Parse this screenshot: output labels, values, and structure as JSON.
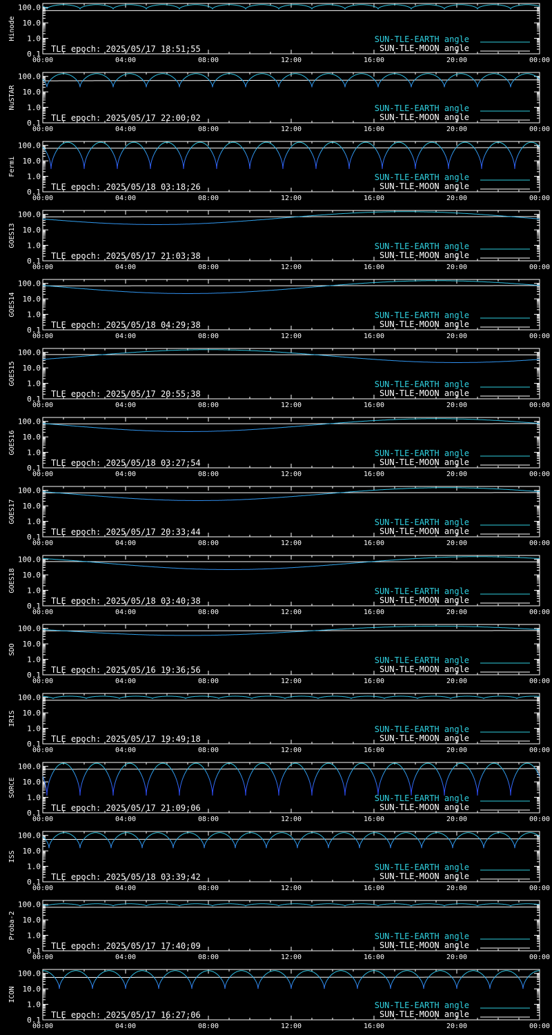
{
  "colors": {
    "background": "#000000",
    "axes": "#ffffff",
    "sun_earth_dip": "#3050ff",
    "sun_earth_high": "#30d0e0",
    "sun_moon": "#ffffff"
  },
  "chart_data": {
    "type": "line",
    "y_scale": "log",
    "ylim": [
      0.1,
      180.0
    ],
    "xlim": [
      "00:00",
      "24:00"
    ],
    "x_tick_labels": [
      "00:00",
      "04:00",
      "08:00",
      "12:00",
      "16:00",
      "20:00",
      "00:00"
    ],
    "y_tick_labels": [
      "100.0",
      "10.0",
      "1.0",
      "0.1"
    ],
    "legend_position": "bottom-right",
    "legend": {
      "earth": "SUN-TLE-EARTH angle",
      "moon": "SUN-TLE-MOON angle"
    },
    "panels": [
      {
        "satellite": "Hinode",
        "epoch": "TLE epoch: 2025/05/17 18:51:55",
        "earth": {
          "kind": "orbital",
          "period_h": 1.6,
          "phase_h": 0.2,
          "max": 150,
          "min": 80
        },
        "moon": {
          "start": 62,
          "end": 62
        }
      },
      {
        "satellite": "NuSTAR",
        "epoch": "TLE epoch: 2025/05/17 22:00:02",
        "earth": {
          "kind": "orbital",
          "period_h": 1.6,
          "phase_h": 0.2,
          "max": 150,
          "min": 20
        },
        "moon": {
          "start": 52,
          "end": 60
        }
      },
      {
        "satellite": "Fermi",
        "epoch": "TLE epoch: 2025/05/18 03:18:26",
        "earth": {
          "kind": "orbital",
          "period_h": 1.6,
          "phase_h": 0.4,
          "max": 160,
          "min": 3
        },
        "moon": {
          "start": 65,
          "end": 72
        }
      },
      {
        "satellite": "GOES13",
        "epoch": "TLE epoch: 2025/05/17 21:03:38",
        "earth": {
          "kind": "daily",
          "low_h": 5.5,
          "min": 22,
          "max": 150
        },
        "moon": {
          "start": 70,
          "end": 72
        }
      },
      {
        "satellite": "GOES14",
        "epoch": "TLE epoch: 2025/05/18 04:29:38",
        "earth": {
          "kind": "daily",
          "low_h": 7.0,
          "min": 22,
          "max": 150
        },
        "moon": {
          "start": 70,
          "end": 72
        }
      },
      {
        "satellite": "GOES15",
        "epoch": "TLE epoch: 2025/05/17 20:55:38",
        "earth": {
          "kind": "daily",
          "low_h": 20.0,
          "min": 22,
          "max": 150
        },
        "moon": {
          "start": 72,
          "end": 70
        }
      },
      {
        "satellite": "GOES16",
        "epoch": "TLE epoch: 2025/05/18 03:27:54",
        "earth": {
          "kind": "daily",
          "low_h": 7.0,
          "min": 22,
          "max": 150
        },
        "moon": {
          "start": 70,
          "end": 72
        }
      },
      {
        "satellite": "GOES17",
        "epoch": "TLE epoch: 2025/05/17 20:33:44",
        "earth": {
          "kind": "daily",
          "low_h": 7.5,
          "min": 22,
          "max": 150
        },
        "moon": {
          "start": 70,
          "end": 72
        }
      },
      {
        "satellite": "GOES18",
        "epoch": "TLE epoch: 2025/05/18 03:40:38",
        "earth": {
          "kind": "daily",
          "low_h": 9.0,
          "min": 22,
          "max": 150
        },
        "moon": {
          "start": 72,
          "end": 70
        }
      },
      {
        "satellite": "SDO",
        "epoch": "TLE epoch: 2025/05/16 19:36:56",
        "earth": {
          "kind": "daily",
          "low_h": 7.0,
          "min": 35,
          "max": 140
        },
        "moon": {
          "start": 70,
          "end": 72
        }
      },
      {
        "satellite": "IRIS",
        "epoch": "TLE epoch: 2025/05/17 19:49:18",
        "earth": {
          "kind": "orbital",
          "period_h": 1.6,
          "phase_h": 0.5,
          "max": 120,
          "min": 85
        },
        "moon": {
          "start": 65,
          "end": 65
        }
      },
      {
        "satellite": "SORCE",
        "epoch": "TLE epoch: 2025/05/17 21:09:06",
        "earth": {
          "kind": "orbital",
          "period_h": 1.6,
          "phase_h": 0.2,
          "max": 160,
          "min": 1.3
        },
        "moon": {
          "start": 65,
          "end": 72
        }
      },
      {
        "satellite": "ISS",
        "epoch": "TLE epoch: 2025/05/18 03:39:42",
        "earth": {
          "kind": "orbital",
          "period_h": 1.5,
          "phase_h": 0.3,
          "max": 150,
          "min": 15
        },
        "moon": {
          "start": 55,
          "end": 60
        }
      },
      {
        "satellite": "Proba-2",
        "epoch": "TLE epoch: 2025/05/17 17:40:09",
        "earth": {
          "kind": "orbital",
          "period_h": 1.6,
          "phase_h": 0.2,
          "max": 110,
          "min": 80
        },
        "moon": {
          "start": 65,
          "end": 68
        }
      },
      {
        "satellite": "ICON",
        "epoch": "TLE epoch: 2025/05/17 16:27:06",
        "earth": {
          "kind": "orbital",
          "period_h": 1.6,
          "phase_h": 0.8,
          "max": 150,
          "min": 10
        },
        "moon": {
          "start": 55,
          "end": 58
        }
      }
    ]
  }
}
